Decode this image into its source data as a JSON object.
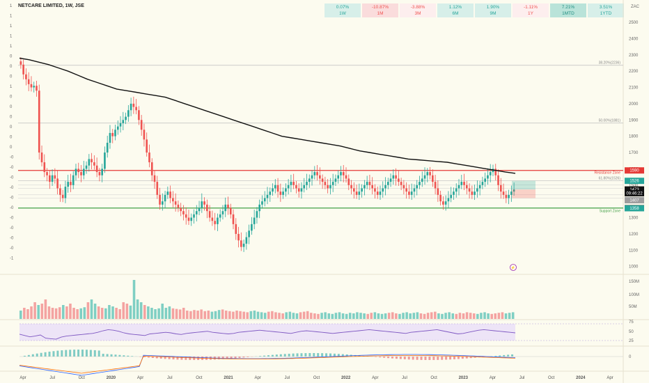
{
  "title": "NETCARE LIMITED, 1W, JSE",
  "currency": "ZAC",
  "performance": [
    {
      "value": "0.07%",
      "label": "1W",
      "tone": "pos"
    },
    {
      "value": "-10.87%",
      "label": "1M",
      "tone": "neg"
    },
    {
      "value": "-3.88%",
      "label": "3M",
      "tone": "negl"
    },
    {
      "value": "1.12%",
      "label": "6M",
      "tone": "pos"
    },
    {
      "value": "1.90%",
      "label": "9M",
      "tone": "pos"
    },
    {
      "value": "-1.11%",
      "label": "1Y",
      "tone": "negl"
    },
    {
      "value": "7.21%",
      "label": "1MTD",
      "tone": "posd"
    },
    {
      "value": "3.51%",
      "label": "1YTD",
      "tone": "pos"
    }
  ],
  "left_strip": [
    "1",
    "1",
    "1",
    "1",
    "1",
    "0",
    "0",
    "0",
    "1",
    "0",
    "0",
    "0",
    "0",
    "0",
    "0",
    "-0",
    "-0",
    "-0",
    "-0",
    "-0",
    "-0",
    "-0",
    "-0",
    "-0",
    "-0",
    "-1"
  ],
  "colors": {
    "up": "#26a69a",
    "down": "#ef5350",
    "ma": "#111111",
    "resistance": "#e53935",
    "support": "#43a047",
    "rsi": "#7e57c2"
  },
  "chart_data": {
    "type": "candlestick",
    "price_axis": {
      "ticks": [
        2500,
        2400,
        2300,
        2200,
        2100,
        2000,
        1900,
        1800,
        1700,
        1600,
        1500,
        1400,
        1300,
        1200,
        1100,
        1000
      ],
      "range": [
        960,
        2560
      ]
    },
    "x_ticks": [
      "Apr",
      "Jul",
      "Oct",
      "2020",
      "Apr",
      "Jul",
      "Oct",
      "2021",
      "Apr",
      "Jul",
      "Oct",
      "2022",
      "Apr",
      "Jul",
      "Oct",
      "2023",
      "Apr",
      "Jul",
      "Oct",
      "2024",
      "Apr"
    ],
    "closes_approx": [
      2240,
      2180,
      2150,
      2120,
      2100,
      2110,
      2080,
      1700,
      1640,
      1580,
      1560,
      1520,
      1560,
      1540,
      1480,
      1440,
      1420,
      1490,
      1520,
      1500,
      1560,
      1600,
      1580,
      1560,
      1600,
      1620,
      1660,
      1640,
      1620,
      1580,
      1560,
      1600,
      1700,
      1760,
      1820,
      1800,
      1840,
      1860,
      1880,
      1900,
      1920,
      1960,
      2000,
      1980,
      1960,
      1900,
      1840,
      1780,
      1700,
      1640,
      1560,
      1520,
      1440,
      1380,
      1400,
      1440,
      1460,
      1420,
      1400,
      1380,
      1360,
      1340,
      1320,
      1300,
      1280,
      1300,
      1320,
      1340,
      1360,
      1400,
      1380,
      1340,
      1300,
      1280,
      1260,
      1300,
      1320,
      1340,
      1380,
      1360,
      1320,
      1260,
      1200,
      1160,
      1120,
      1140,
      1180,
      1220,
      1260,
      1300,
      1340,
      1380,
      1400,
      1420,
      1440,
      1460,
      1480,
      1500,
      1460,
      1440,
      1460,
      1480,
      1500,
      1520,
      1500,
      1480,
      1460,
      1480,
      1500,
      1520,
      1540,
      1560,
      1580,
      1560,
      1540,
      1520,
      1500,
      1480,
      1500,
      1520,
      1540,
      1560,
      1580,
      1560,
      1540,
      1500,
      1480,
      1460,
      1440,
      1460,
      1480,
      1500,
      1520,
      1500,
      1480,
      1460,
      1440,
      1460,
      1480,
      1500,
      1520,
      1540,
      1560,
      1540,
      1520,
      1500,
      1480,
      1460,
      1440,
      1460,
      1480,
      1500,
      1520,
      1540,
      1560,
      1580,
      1560,
      1520,
      1480,
      1440,
      1400,
      1380,
      1400,
      1420,
      1440,
      1460,
      1480,
      1500,
      1520,
      1500,
      1480,
      1460,
      1440,
      1460,
      1480,
      1500,
      1520,
      1540,
      1560,
      1580,
      1600,
      1560,
      1500,
      1460,
      1440,
      1420,
      1440,
      1460,
      1473
    ],
    "moving_average_approx": [
      2280,
      2270,
      2255,
      2240,
      2220,
      2200,
      2175,
      2150,
      2130,
      2110,
      2090,
      2080,
      2070,
      2060,
      2050,
      2040,
      2020,
      2000,
      1980,
      1960,
      1940,
      1920,
      1900,
      1880,
      1860,
      1840,
      1820,
      1800,
      1790,
      1780,
      1770,
      1760,
      1750,
      1740,
      1725,
      1710,
      1700,
      1690,
      1680,
      1670,
      1660,
      1655,
      1650,
      1645,
      1640,
      1630,
      1620,
      1610,
      1600,
      1590,
      1580,
      1572
    ],
    "resistance_zone": {
      "price": 1590,
      "label": "Resistance Zone"
    },
    "support_zone": {
      "price": 1359,
      "label": "Support Zone"
    },
    "fib_levels": [
      {
        "label": "38.20%(2236)",
        "price": 2236
      },
      {
        "label": "50.00%(1881)",
        "price": 1881
      },
      {
        "label": "61.80%(1526)",
        "price": 1526
      }
    ],
    "extra_levels": [
      1500,
      1480,
      1440,
      1420
    ],
    "price_labels": [
      {
        "text": "1590",
        "price": 1590,
        "color": "#e53935"
      },
      {
        "text": "1526",
        "price": 1526,
        "color": "#26a69a"
      },
      {
        "text": "1473",
        "price": 1473,
        "color": "#111111"
      },
      {
        "text": "09:46:22",
        "price": 1450,
        "color": "#111111"
      },
      {
        "text": "1407",
        "price": 1407,
        "color": "#9e9e9e"
      },
      {
        "text": "1359",
        "price": 1359,
        "color": "#e53935"
      },
      {
        "text": "1358",
        "price": 1358,
        "color": "#26a69a"
      }
    ],
    "position_box": {
      "entry": 1473,
      "target": 1526,
      "stop": 1420
    },
    "volume_axis": {
      "ticks": [
        "150M",
        "100M",
        "50M"
      ]
    },
    "volume_approx": [
      30,
      40,
      35,
      45,
      60,
      50,
      55,
      70,
      45,
      40,
      38,
      42,
      50,
      45,
      55,
      40,
      35,
      38,
      42,
      60,
      70,
      55,
      45,
      40,
      38,
      50,
      45,
      40,
      35,
      60,
      55,
      48,
      140,
      70,
      60,
      50,
      45,
      40,
      35,
      38,
      55,
      40,
      45,
      38,
      36,
      34,
      40,
      30,
      28,
      32,
      30,
      34,
      28,
      30,
      26,
      28,
      32,
      34,
      30,
      28,
      26,
      30,
      28,
      26,
      24,
      28,
      30,
      26,
      24,
      22,
      26,
      28,
      24,
      22,
      20,
      24,
      26,
      22,
      20,
      24,
      26,
      28,
      22,
      20,
      18,
      22,
      24,
      20,
      18,
      22,
      24,
      20,
      18,
      22,
      20,
      24,
      22,
      20,
      18,
      22,
      24,
      20,
      18,
      20,
      22,
      24,
      20,
      18,
      22,
      24,
      20,
      22,
      24,
      20,
      18,
      22,
      24,
      26,
      20,
      18,
      22,
      24,
      20,
      18,
      22,
      20,
      24,
      22,
      20,
      18,
      22,
      24,
      20,
      18,
      20,
      22,
      24,
      20,
      22,
      24
    ],
    "rsi_axis": {
      "ticks": [
        "75",
        "50",
        "25"
      ],
      "range": [
        0,
        100
      ]
    },
    "rsi_approx": [
      45,
      40,
      35,
      38,
      42,
      30,
      28,
      26,
      34,
      38,
      40,
      42,
      44,
      46,
      48,
      52,
      58,
      62,
      60,
      56,
      50,
      46,
      44,
      42,
      40,
      46,
      48,
      50,
      52,
      50,
      46,
      44,
      48,
      50,
      52,
      54,
      56,
      52,
      50,
      48,
      46,
      48,
      52,
      54,
      56,
      58,
      60,
      58,
      56,
      54,
      52,
      50,
      48,
      52,
      56,
      58,
      56,
      54,
      52,
      50,
      48,
      50,
      52,
      54,
      56,
      58,
      60,
      62,
      60,
      58,
      56,
      54,
      52,
      50,
      48,
      52,
      54,
      56,
      58,
      60,
      62,
      58,
      54,
      50,
      46,
      48,
      52,
      56,
      60,
      62,
      60,
      58,
      56,
      54,
      52,
      50
    ],
    "macd_axis": {
      "ticks": [
        "0"
      ]
    }
  }
}
